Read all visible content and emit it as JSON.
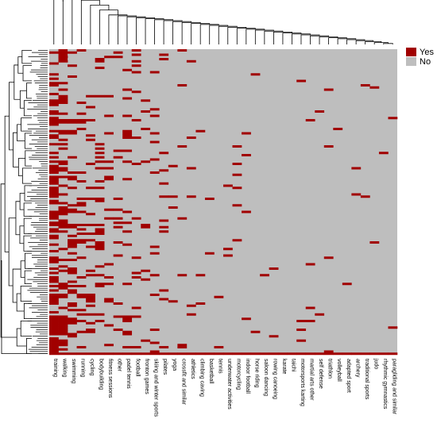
{
  "chart_data": {
    "type": "heatmap",
    "title": "",
    "xlabel": "",
    "ylabel": "",
    "columns": [
      "training",
      "walking",
      "swimming",
      "running",
      "cycling",
      "bodybuilding",
      "fitness sessions",
      "other",
      "padel tennis",
      "football",
      "fronton games",
      "skiing and winter sports",
      "pilates",
      "yoga",
      "crossfit and similar",
      "athletics",
      "climbing caving",
      "basketball",
      "tennis",
      "underwater activities",
      "motorcycling",
      "indoor football",
      "horse riding",
      "saloon dancing",
      "rowing canoeing",
      "karate",
      "taichi",
      "motorsports karting",
      "martial arts other",
      "self defense",
      "triathlon",
      "volleyball",
      "adapted sport",
      "archery",
      "traditional sports",
      "judo",
      "rhythmic gymnastics",
      "paragliding and similar"
    ],
    "rows_approx": 140,
    "legend": {
      "position": "right",
      "entries": [
        {
          "label": "Yes",
          "color": "#a10000"
        },
        {
          "label": "No",
          "color": "#bebebe"
        }
      ]
    },
    "column_dendrogram": true,
    "row_dendrogram": true,
    "bottom_row_all_yes": true,
    "approx_yes_fraction": [
      0.58,
      0.42,
      0.24,
      0.2,
      0.24,
      0.14,
      0.12,
      0.1,
      0.1,
      0.1,
      0.08,
      0.09,
      0.06,
      0.04,
      0.05,
      0.04,
      0.03,
      0.03,
      0.03,
      0.02,
      0.03,
      0.02,
      0.02,
      0.02,
      0.02,
      0.02,
      0.01,
      0.01,
      0.02,
      0.02,
      0.01,
      0.01,
      0.01,
      0.01,
      0.01,
      0.01,
      0.01,
      0.01
    ]
  }
}
